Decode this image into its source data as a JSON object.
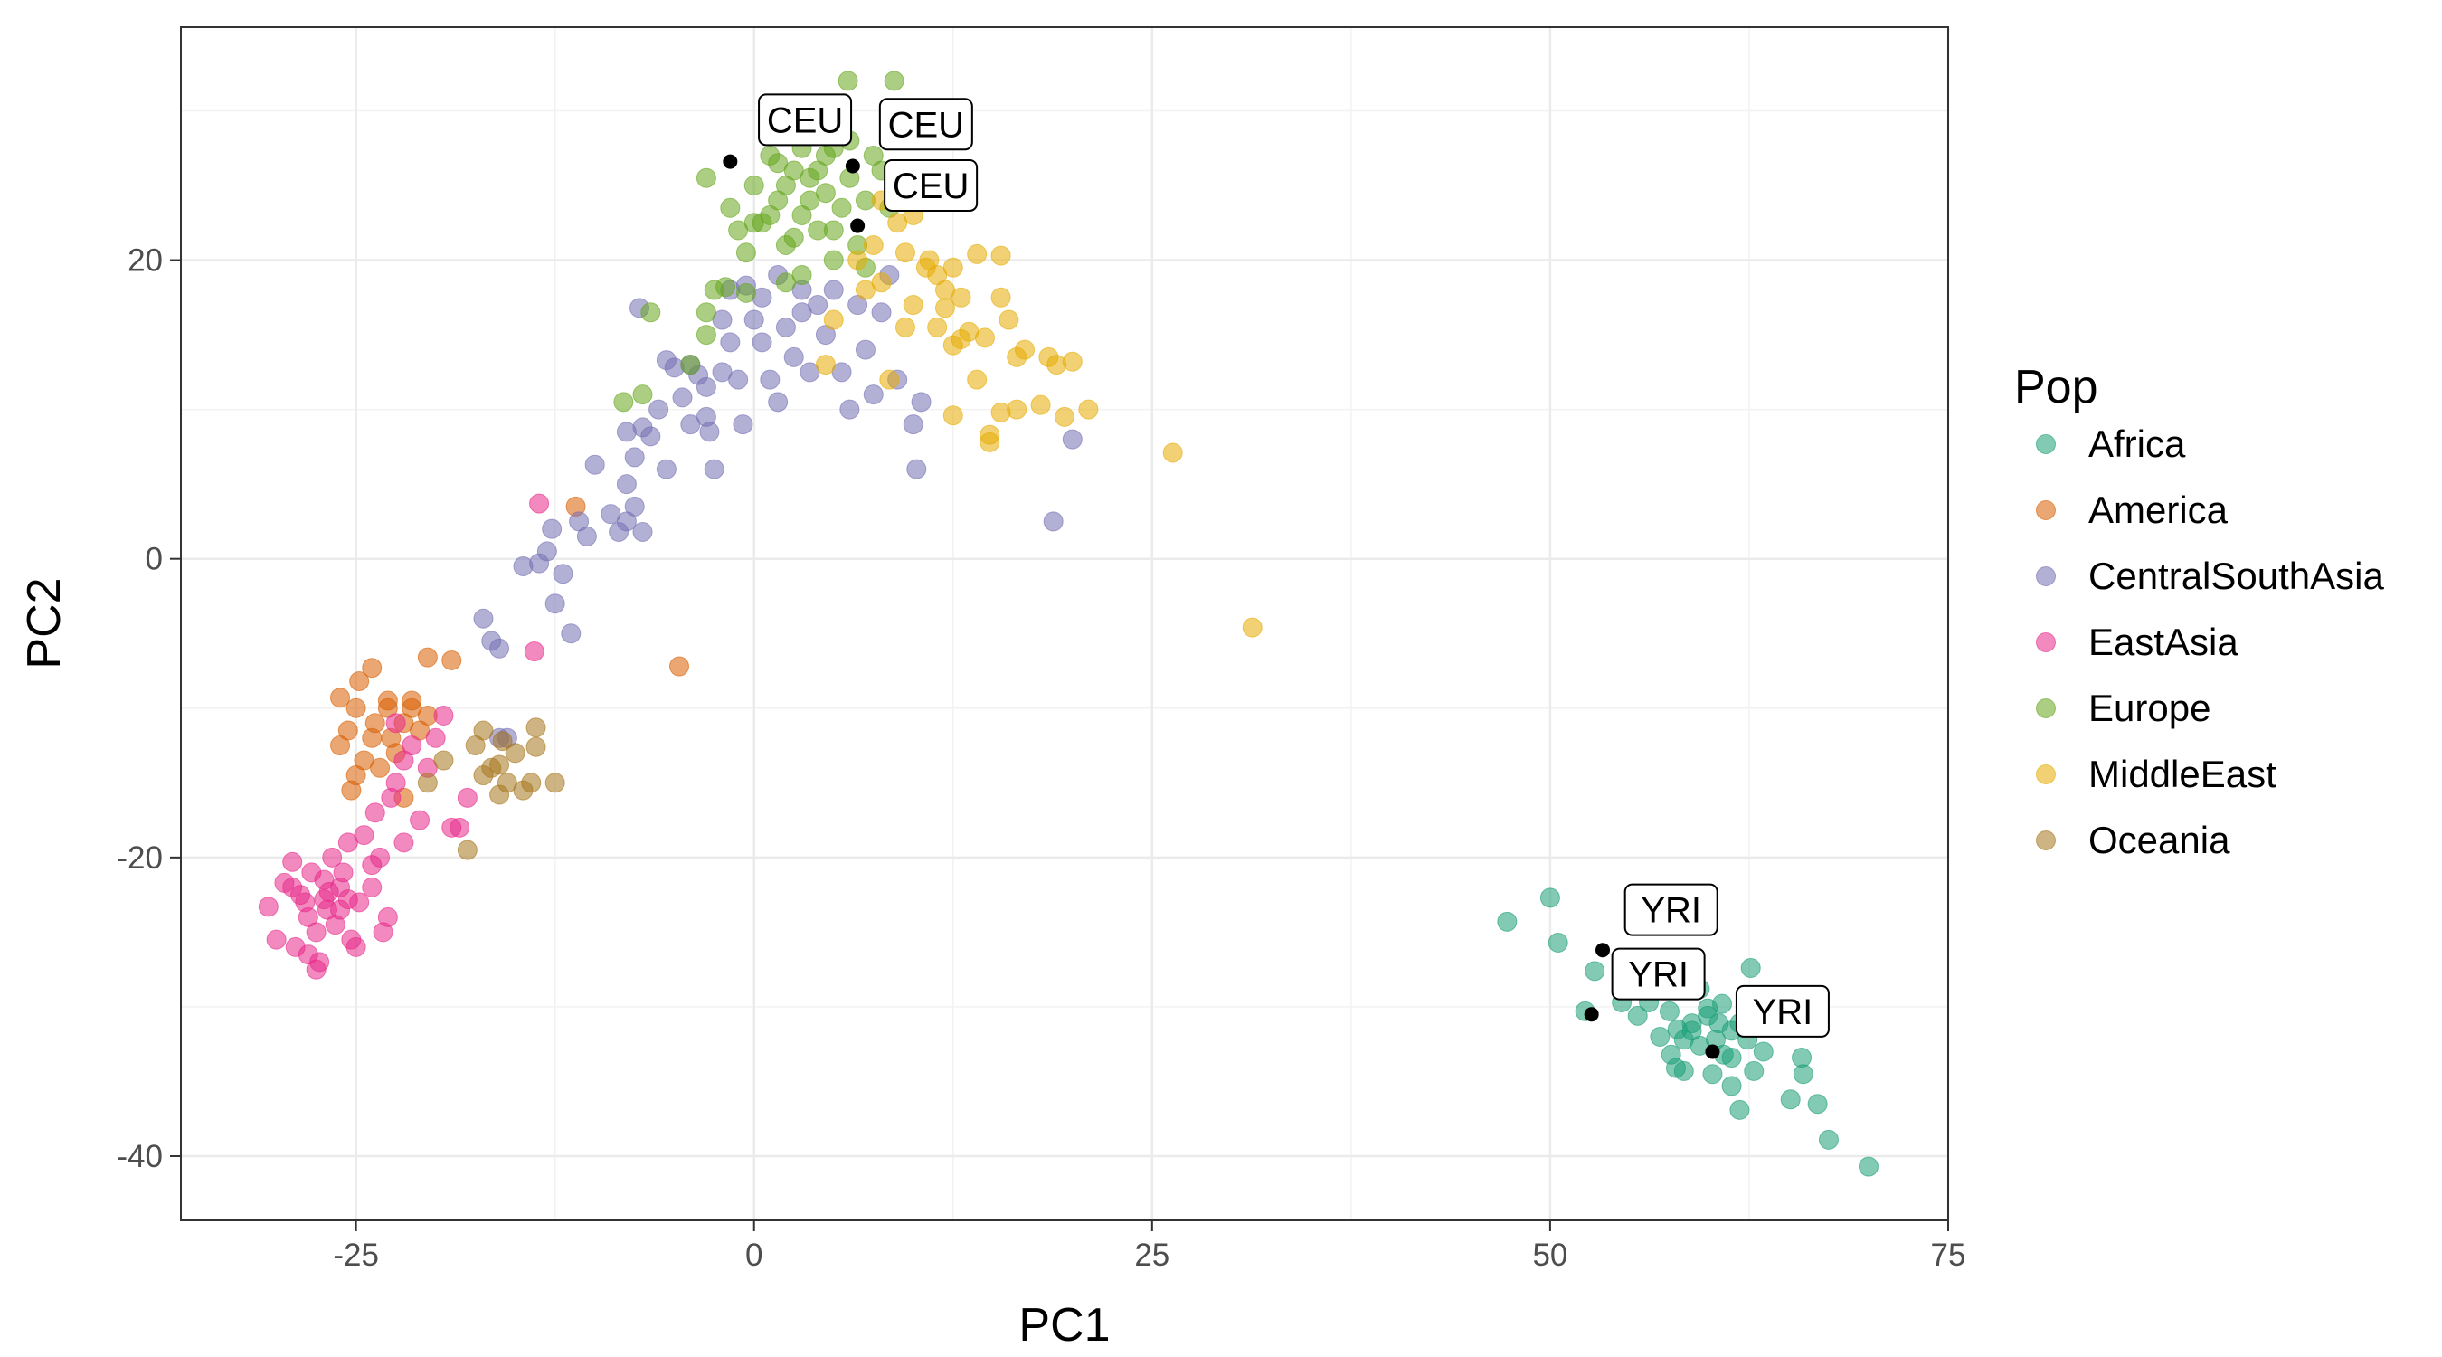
{
  "chart_data": {
    "type": "scatter",
    "xlabel": "PC1",
    "ylabel": "PC2",
    "xlim": [
      -36,
      75
    ],
    "ylim": [
      -44.3,
      35.6
    ],
    "xticks": [
      -25,
      0,
      25,
      50,
      75
    ],
    "yticks": [
      20,
      0,
      -20,
      -40
    ],
    "xtick_labels": [
      "-25",
      "0",
      "25",
      "50",
      "75"
    ],
    "ytick_labels": [
      "20",
      "0",
      "-20",
      "-40"
    ],
    "grid": true,
    "legend": {
      "title": "Pop",
      "placement": "right"
    },
    "series": [
      {
        "name": "Africa",
        "color": "#1B9E77",
        "points": [
          [
            47.3,
            -24.3
          ],
          [
            50,
            -22.7
          ],
          [
            50.5,
            -25.7
          ],
          [
            52.2,
            -30.3
          ],
          [
            52.8,
            -27.6
          ],
          [
            54.5,
            -29.7
          ],
          [
            55.5,
            -30.6
          ],
          [
            56.2,
            -29.7
          ],
          [
            56.9,
            -32
          ],
          [
            57.6,
            -33.2
          ],
          [
            57.9,
            -34.1
          ],
          [
            58.4,
            -32.2
          ],
          [
            58.9,
            -31.1
          ],
          [
            59.4,
            -28.8
          ],
          [
            59.9,
            -30.6
          ],
          [
            60.4,
            -32.2
          ],
          [
            60.9,
            -33.2
          ],
          [
            61.4,
            -35.3
          ],
          [
            61.9,
            -36.9
          ],
          [
            62.6,
            -27.4
          ],
          [
            62.8,
            -34.3
          ],
          [
            63.4,
            -33
          ],
          [
            65.1,
            -36.2
          ],
          [
            65.8,
            -33.4
          ],
          [
            65.9,
            -34.5
          ],
          [
            66.8,
            -36.5
          ],
          [
            67.5,
            -38.9
          ],
          [
            70,
            -40.7
          ],
          [
            58.9,
            -31.6
          ],
          [
            59.4,
            -32.6
          ],
          [
            59.9,
            -30.1
          ],
          [
            60.6,
            -31.1
          ],
          [
            61.4,
            -31.6
          ],
          [
            61.9,
            -31.1
          ],
          [
            62.4,
            -32.2
          ],
          [
            58.4,
            -34.3
          ],
          [
            60.2,
            -34.5
          ],
          [
            61.4,
            -33.4
          ],
          [
            56.5,
            -28.5
          ],
          [
            57.5,
            -30.3
          ],
          [
            58,
            -31.5
          ],
          [
            60.8,
            -29.8
          ]
        ]
      },
      {
        "name": "America",
        "color": "#D95F02",
        "points": [
          [
            -25,
            -10
          ],
          [
            -24,
            -12
          ],
          [
            -23,
            -9.5
          ],
          [
            -22,
            -11
          ],
          [
            -24.5,
            -13.5
          ],
          [
            -25.5,
            -11.5
          ],
          [
            -23.5,
            -14
          ],
          [
            -22.5,
            -13
          ],
          [
            -21.5,
            -10
          ],
          [
            -20.5,
            -6.6
          ],
          [
            -19,
            -6.8
          ],
          [
            -21,
            -11.5
          ],
          [
            -26,
            -9.3
          ],
          [
            -24,
            -7.3
          ],
          [
            -26,
            -12.5
          ],
          [
            -25,
            -14.5
          ],
          [
            -22,
            -16
          ],
          [
            -23,
            -10
          ],
          [
            -24.8,
            -8.2
          ],
          [
            -21.5,
            -9.5
          ],
          [
            -11.2,
            3.5
          ],
          [
            -4.7,
            -7.2
          ],
          [
            -25.3,
            -15.5
          ],
          [
            -22.8,
            -12
          ],
          [
            -20.5,
            -10.5
          ],
          [
            -23.8,
            -11
          ]
        ]
      },
      {
        "name": "CentralSouthAsia",
        "color": "#7570B3",
        "points": [
          [
            -17,
            -4
          ],
          [
            -16.5,
            -5.5
          ],
          [
            -16,
            -6
          ],
          [
            -15.5,
            -12
          ],
          [
            -16,
            -12
          ],
          [
            -14.5,
            -0.5
          ],
          [
            -13.5,
            -0.3
          ],
          [
            -13,
            0.5
          ],
          [
            -12.5,
            -3
          ],
          [
            -12,
            -1
          ],
          [
            -11.5,
            -5
          ],
          [
            -12.7,
            2
          ],
          [
            -11,
            2.5
          ],
          [
            -10.5,
            1.5
          ],
          [
            -10,
            6.3
          ],
          [
            -9,
            3
          ],
          [
            -8.5,
            1.8
          ],
          [
            -8,
            5
          ],
          [
            -7.5,
            3.5
          ],
          [
            -7,
            1.8
          ],
          [
            -8,
            2.5
          ],
          [
            -7.5,
            6.8
          ],
          [
            -7,
            8.8
          ],
          [
            -6.5,
            8.2
          ],
          [
            -6,
            10
          ],
          [
            -5.5,
            13.3
          ],
          [
            -5,
            12.8
          ],
          [
            -4.5,
            10.8
          ],
          [
            -4,
            9
          ],
          [
            -3.5,
            12.3
          ],
          [
            -3,
            11.5
          ],
          [
            -2.8,
            8.5
          ],
          [
            -2.5,
            6
          ],
          [
            -2,
            16
          ],
          [
            -1.5,
            14.5
          ],
          [
            -1,
            12
          ],
          [
            -0.7,
            9
          ],
          [
            -0.5,
            18.3
          ],
          [
            0,
            16
          ],
          [
            0.5,
            14.5
          ],
          [
            1,
            12
          ],
          [
            1.5,
            10.5
          ],
          [
            2,
            15.5
          ],
          [
            2.5,
            13.5
          ],
          [
            3,
            16.5
          ],
          [
            3.5,
            12.5
          ],
          [
            4,
            17
          ],
          [
            4.5,
            15
          ],
          [
            5,
            18
          ],
          [
            5.5,
            12.5
          ],
          [
            6,
            10
          ],
          [
            6.5,
            17
          ],
          [
            7,
            14
          ],
          [
            7.5,
            11
          ],
          [
            8,
            16.5
          ],
          [
            8.5,
            19
          ],
          [
            9,
            12
          ],
          [
            10,
            9
          ],
          [
            10.5,
            10.5
          ],
          [
            10.2,
            6
          ],
          [
            18.8,
            2.5
          ],
          [
            20,
            8
          ],
          [
            -7.2,
            16.8
          ],
          [
            -4,
            13
          ],
          [
            -2,
            12.5
          ],
          [
            0.5,
            17.5
          ],
          [
            1.5,
            19
          ],
          [
            3,
            18
          ],
          [
            -1.5,
            18
          ],
          [
            -3,
            9.5
          ],
          [
            -5.5,
            6
          ],
          [
            -8,
            8.5
          ]
        ]
      },
      {
        "name": "EastAsia",
        "color": "#E7298A",
        "points": [
          [
            -30.5,
            -23.3
          ],
          [
            -30,
            -25.5
          ],
          [
            -29.5,
            -21.7
          ],
          [
            -29,
            -20.3
          ],
          [
            -28.8,
            -26
          ],
          [
            -28.5,
            -22.5
          ],
          [
            -28,
            -24
          ],
          [
            -27.8,
            -21
          ],
          [
            -27.5,
            -25
          ],
          [
            -27.3,
            -27
          ],
          [
            -27,
            -22.8
          ],
          [
            -26.8,
            -23.5
          ],
          [
            -26.5,
            -20
          ],
          [
            -26.3,
            -24.5
          ],
          [
            -26,
            -22
          ],
          [
            -25.8,
            -21
          ],
          [
            -25.5,
            -19
          ],
          [
            -25.3,
            -25.5
          ],
          [
            -25,
            -26
          ],
          [
            -24.8,
            -23
          ],
          [
            -24.5,
            -18.5
          ],
          [
            -24,
            -22
          ],
          [
            -23.8,
            -17
          ],
          [
            -23.5,
            -20
          ],
          [
            -23.3,
            -25
          ],
          [
            -23,
            -24
          ],
          [
            -22.8,
            -16
          ],
          [
            -22.5,
            -15
          ],
          [
            -22,
            -19
          ],
          [
            -22,
            -13.5
          ],
          [
            -21.5,
            -12.5
          ],
          [
            -21,
            -17.5
          ],
          [
            -20.5,
            -14
          ],
          [
            -20,
            -12
          ],
          [
            -19.5,
            -10.5
          ],
          [
            -19,
            -18
          ],
          [
            -18.5,
            -18
          ],
          [
            -18,
            -16
          ],
          [
            -27.5,
            -27.5
          ],
          [
            -28,
            -26.5
          ],
          [
            -29,
            -22
          ],
          [
            -26,
            -23.5
          ],
          [
            -27,
            -21.5
          ],
          [
            -26.7,
            -22.3
          ],
          [
            -25.5,
            -22.8
          ],
          [
            -13.8,
            -6.2
          ],
          [
            -13.5,
            3.7
          ],
          [
            -22.5,
            -11
          ],
          [
            -24,
            -20.5
          ],
          [
            -28.2,
            -23
          ]
        ]
      },
      {
        "name": "Europe",
        "color": "#66A61E",
        "points": [
          [
            5.9,
            32
          ],
          [
            8.8,
            32
          ],
          [
            -3,
            25.5
          ],
          [
            -1.5,
            23.5
          ],
          [
            -1,
            22
          ],
          [
            -0.5,
            20.5
          ],
          [
            0,
            25
          ],
          [
            0.5,
            22.5
          ],
          [
            1,
            27
          ],
          [
            1.5,
            24
          ],
          [
            2,
            21
          ],
          [
            2.5,
            26
          ],
          [
            3,
            23
          ],
          [
            3.5,
            25.5
          ],
          [
            4,
            22
          ],
          [
            4.5,
            24.5
          ],
          [
            5,
            27.5
          ],
          [
            5.5,
            23.5
          ],
          [
            6,
            25.5
          ],
          [
            6.5,
            21
          ],
          [
            7,
            24
          ],
          [
            7.5,
            27
          ],
          [
            8,
            26
          ],
          [
            8.5,
            23.5
          ],
          [
            3,
            19
          ],
          [
            2,
            18.5
          ],
          [
            -0.5,
            17.8
          ],
          [
            -2.5,
            18
          ],
          [
            -3,
            15
          ],
          [
            -4,
            13
          ],
          [
            -6.5,
            16.5
          ],
          [
            -7,
            11
          ],
          [
            -8.2,
            10.5
          ],
          [
            2.5,
            21.5
          ],
          [
            1,
            23
          ],
          [
            3.5,
            24
          ],
          [
            4,
            26
          ],
          [
            5,
            22
          ],
          [
            6,
            28
          ],
          [
            4.5,
            27
          ],
          [
            1.5,
            26.5
          ],
          [
            0,
            22.5
          ],
          [
            2,
            25
          ],
          [
            3,
            27.5
          ],
          [
            7,
            19.5
          ],
          [
            5,
            20
          ],
          [
            -1.8,
            18.2
          ],
          [
            -3,
            16.5
          ]
        ]
      },
      {
        "name": "MiddleEast",
        "color": "#E6AB02",
        "points": [
          [
            8,
            24
          ],
          [
            9,
            22.5
          ],
          [
            10,
            23
          ],
          [
            9.5,
            20.5
          ],
          [
            11,
            20
          ],
          [
            11.5,
            19
          ],
          [
            12.5,
            19.5
          ],
          [
            12,
            18
          ],
          [
            13,
            17.5
          ],
          [
            14,
            20.4
          ],
          [
            15.5,
            20.3
          ],
          [
            15.5,
            17.5
          ],
          [
            16,
            16
          ],
          [
            14.5,
            14.8
          ],
          [
            12.5,
            14.3
          ],
          [
            13.5,
            15.2
          ],
          [
            11.5,
            15.5
          ],
          [
            10,
            17
          ],
          [
            9.5,
            15.5
          ],
          [
            8.5,
            12
          ],
          [
            7,
            18
          ],
          [
            8,
            18.5
          ],
          [
            6.5,
            20
          ],
          [
            7.5,
            21
          ],
          [
            5,
            16
          ],
          [
            4.5,
            13
          ],
          [
            16.5,
            13.5
          ],
          [
            17,
            14
          ],
          [
            18.5,
            13.5
          ],
          [
            19,
            13
          ],
          [
            20,
            13.2
          ],
          [
            21,
            10
          ],
          [
            19.5,
            9.5
          ],
          [
            18,
            10.3
          ],
          [
            16.5,
            10
          ],
          [
            15.5,
            9.8
          ],
          [
            14.8,
            8.3
          ],
          [
            14.8,
            7.8
          ],
          [
            14,
            12
          ],
          [
            12.5,
            9.6
          ],
          [
            26.3,
            7.1
          ],
          [
            31.3,
            -4.6
          ],
          [
            13,
            14.7
          ],
          [
            10.8,
            19.5
          ],
          [
            12,
            16.8
          ]
        ]
      },
      {
        "name": "Oceania",
        "color": "#A6761D",
        "points": [
          [
            -20.5,
            -15
          ],
          [
            -19.5,
            -13.5
          ],
          [
            -18,
            -19.5
          ],
          [
            -17,
            -11.5
          ],
          [
            -16.5,
            -14
          ],
          [
            -16,
            -13.8
          ],
          [
            -16,
            -15.8
          ],
          [
            -15.5,
            -15
          ],
          [
            -15,
            -13
          ],
          [
            -14.5,
            -15.5
          ],
          [
            -14,
            -15
          ],
          [
            -13.7,
            -11.3
          ],
          [
            -13.7,
            -12.6
          ],
          [
            -12.5,
            -15
          ],
          [
            -17.5,
            -12.5
          ],
          [
            -17,
            -14.5
          ],
          [
            -15.8,
            -12.2
          ]
        ]
      }
    ],
    "annotations": [
      {
        "text": "CEU",
        "x": -1.5,
        "y": 26.6,
        "lx": 3.2,
        "ly": 29.4
      },
      {
        "text": "CEU",
        "x": 6.2,
        "y": 26.3,
        "lx": 10.8,
        "ly": 29.1
      },
      {
        "text": "CEU",
        "x": 6.5,
        "y": 22.3,
        "lx": 11.1,
        "ly": 25
      },
      {
        "text": "YRI",
        "x": 53.3,
        "y": -26.2,
        "lx": 57.6,
        "ly": -23.5
      },
      {
        "text": "YRI",
        "x": 52.6,
        "y": -30.5,
        "lx": 56.8,
        "ly": -27.8
      },
      {
        "text": "YRI",
        "x": 60.2,
        "y": -33,
        "lx": 64.6,
        "ly": -30.3
      }
    ]
  }
}
